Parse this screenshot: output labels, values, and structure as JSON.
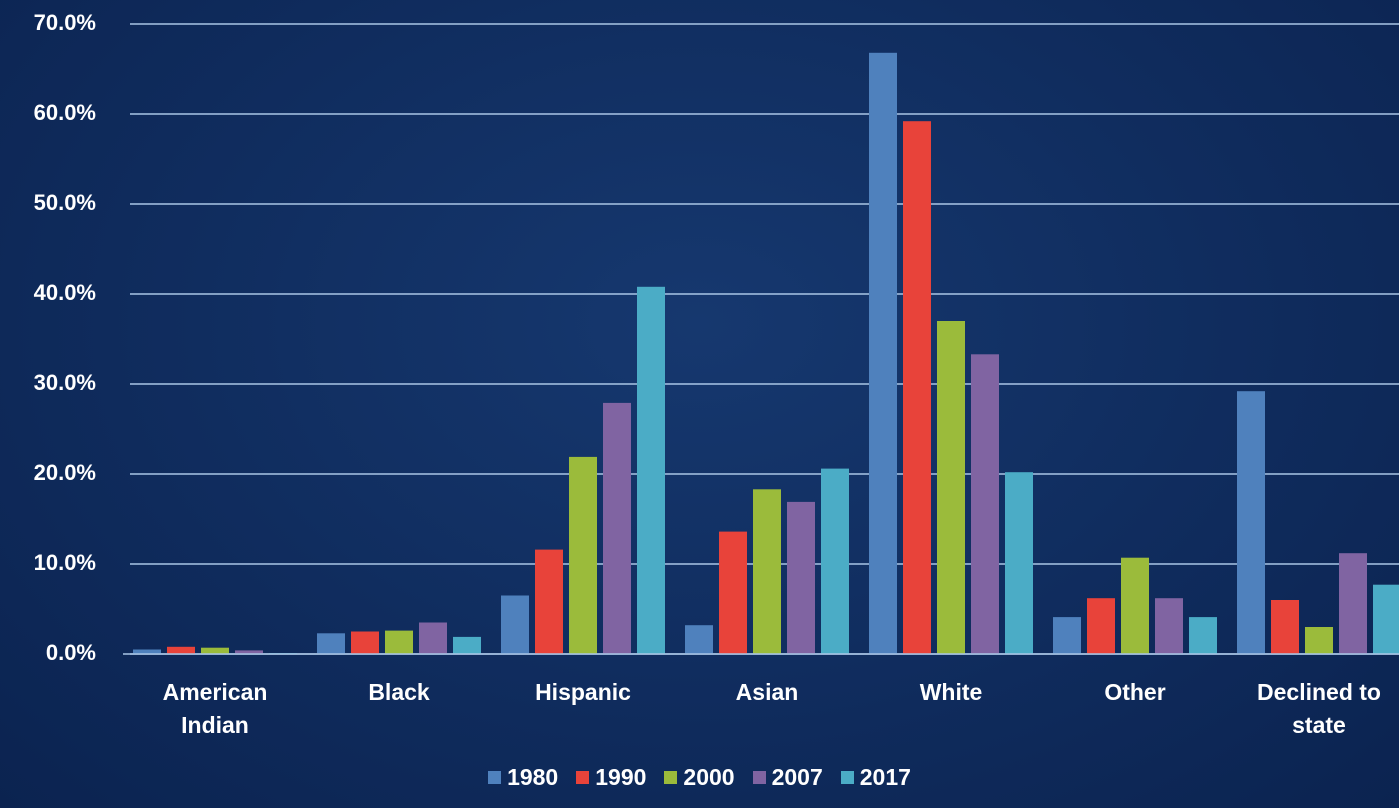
{
  "chart_data": {
    "type": "bar",
    "categories": [
      "American Indian",
      "Black",
      "Hispanic",
      "Asian",
      "White",
      "Other",
      "Declined to state"
    ],
    "series": [
      {
        "name": "1980",
        "color": "#4f81bd",
        "values": [
          0.5,
          2.3,
          6.5,
          3.2,
          66.8,
          4.1,
          29.2
        ]
      },
      {
        "name": "1990",
        "color": "#e8433a",
        "values": [
          0.8,
          2.5,
          11.6,
          13.6,
          59.2,
          6.2,
          6.0
        ]
      },
      {
        "name": "2000",
        "color": "#9bbb3b",
        "values": [
          0.7,
          2.6,
          21.9,
          18.3,
          37.0,
          10.7,
          3.0
        ]
      },
      {
        "name": "2007",
        "color": "#8064a2",
        "values": [
          0.4,
          3.5,
          27.9,
          16.9,
          33.3,
          6.2,
          11.2
        ]
      },
      {
        "name": "2017",
        "color": "#4bacc6",
        "values": [
          0.1,
          1.9,
          40.8,
          20.6,
          20.2,
          4.1,
          7.7
        ]
      }
    ],
    "ylim": [
      0,
      70
    ],
    "yticks": [
      {
        "value": 0,
        "label": "0.0%"
      },
      {
        "value": 10,
        "label": "10.0%"
      },
      {
        "value": 20,
        "label": "20.0%"
      },
      {
        "value": 30,
        "label": "30.0%"
      },
      {
        "value": 40,
        "label": "40.0%"
      },
      {
        "value": 50,
        "label": "50.0%"
      },
      {
        "value": 60,
        "label": "60.0%"
      },
      {
        "value": 70,
        "label": "70.0%"
      }
    ],
    "grid": true,
    "legend": "bottom"
  }
}
